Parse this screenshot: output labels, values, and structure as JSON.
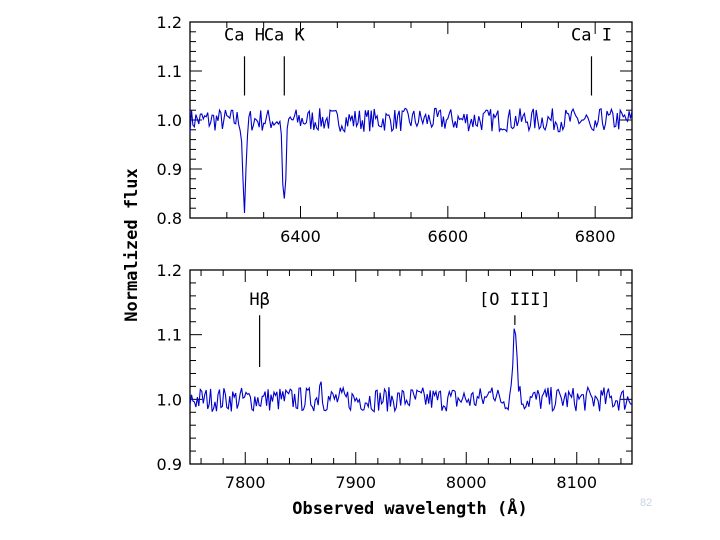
{
  "chart_data": [
    {
      "type": "line",
      "panel": "top",
      "title": "",
      "xlabel": "",
      "ylabel": "Normalized flux",
      "xlim": [
        6250,
        6850
      ],
      "ylim": [
        0.8,
        1.2
      ],
      "x_ticks": [
        6400,
        6600,
        6800
      ],
      "y_ticks": [
        "0.8",
        "0.9",
        "1.0",
        "1.1",
        "1.2"
      ],
      "series": [
        {
          "name": "spectrum",
          "color": "#0000cc",
          "baseline": 1.0,
          "noise": 0.015,
          "absorption": [
            {
              "center": 6324,
              "depth": 0.18,
              "width": 2.2
            },
            {
              "center": 6378,
              "depth": 0.18,
              "width": 2.2
            },
            {
              "center": 6797,
              "depth": 0.04,
              "width": 3.0
            }
          ]
        }
      ],
      "annotations": [
        {
          "label": "Ca H",
          "x": 6324,
          "y": 1.175,
          "tick_top": 1.13,
          "tick_bottom": 1.05
        },
        {
          "label": "Ca K",
          "x": 6378,
          "y": 1.175,
          "tick_top": 1.13,
          "tick_bottom": 1.05
        },
        {
          "label": "Ca I",
          "x": 6795,
          "y": 1.175,
          "tick_top": 1.13,
          "tick_bottom": 1.05
        }
      ]
    },
    {
      "type": "line",
      "panel": "bottom",
      "title": "",
      "xlabel": "Observed wavelength (Å)",
      "ylabel": "Normalized flux",
      "xlim": [
        7750,
        8150
      ],
      "ylim": [
        0.9,
        1.2
      ],
      "x_ticks": [
        7800,
        7900,
        8000,
        8100
      ],
      "y_ticks": [
        "0.9",
        "1.0",
        "1.1",
        "1.2"
      ],
      "series": [
        {
          "name": "spectrum",
          "color": "#0000cc",
          "baseline": 1.0,
          "noise": 0.012,
          "emission": [
            {
              "center": 8044,
              "height": 0.11,
              "width": 2.0
            },
            {
              "center": 8023,
              "height": 0.03,
              "width": 1.5
            },
            {
              "center": 7868,
              "height": 0.035,
              "width": 1.0
            }
          ]
        }
      ],
      "annotations": [
        {
          "label": "Hβ",
          "x": 7813,
          "y": 1.155,
          "tick_top": 1.13,
          "tick_bottom": 1.05
        },
        {
          "label": "[O III]",
          "x": 8044,
          "y": 1.155,
          "tick_top": 1.13,
          "tick_bottom": 1.115
        }
      ]
    }
  ],
  "footer": {
    "page_number": "82"
  }
}
